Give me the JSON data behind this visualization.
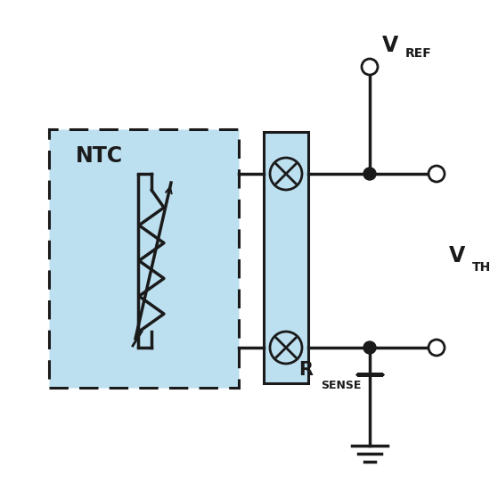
{
  "background_color": "#ffffff",
  "light_blue": "#bde0f0",
  "dark_line": "#1a1a1a",
  "ntc_label": "NTC",
  "vref_label": "V",
  "vref_sub": "REF",
  "vth_label": "V",
  "vth_sub": "TH",
  "rsense_label": "R",
  "rsense_sub": "SENSE",
  "lw": 2.0,
  "fig_w": 5.5,
  "fig_h": 5.52,
  "dpi": 100
}
